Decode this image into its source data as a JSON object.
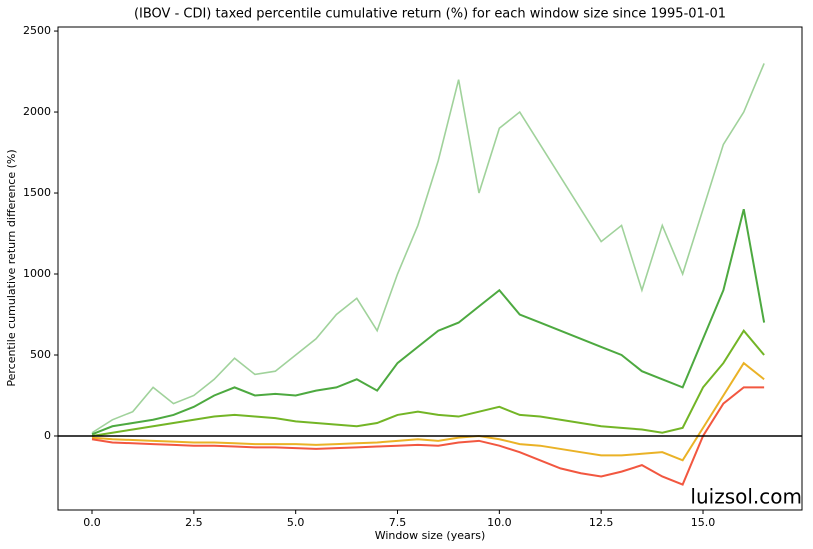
{
  "chart_data": {
    "type": "line",
    "title": "(IBOV - CDI) taxed percentile cumulative return (%) for each window size since 1995-01-01",
    "x_label": "Window size (years)",
    "y_label": "Percentile cumulative return difference (%)",
    "watermark": "luizsol.com",
    "x": [
      0,
      0.5,
      1,
      1.5,
      2,
      2.5,
      3,
      3.5,
      4,
      4.5,
      5,
      5.5,
      6,
      6.5,
      7,
      7.5,
      8,
      8.5,
      9,
      9.5,
      10,
      10.5,
      11,
      11.5,
      12,
      12.5,
      13,
      13.5,
      14,
      14.5,
      15,
      15.5,
      16,
      16.5
    ],
    "series": [
      {
        "color": "#8fca8a",
        "values": [
          20,
          100,
          150,
          300,
          200,
          250,
          350,
          480,
          380,
          400,
          500,
          600,
          750,
          850,
          650,
          1000,
          1300,
          1700,
          2200,
          1500,
          1900,
          2000,
          1800,
          1600,
          1400,
          1200,
          1300,
          900,
          1300,
          1000,
          1400,
          1800,
          2000,
          2300
        ]
      },
      {
        "color": "#2e9a1e",
        "values": [
          10,
          60,
          80,
          100,
          130,
          180,
          250,
          300,
          250,
          260,
          250,
          280,
          300,
          350,
          280,
          450,
          550,
          650,
          700,
          800,
          900,
          750,
          700,
          650,
          600,
          550,
          500,
          400,
          350,
          300,
          600,
          900,
          1400,
          700
        ]
      },
      {
        "color": "#5aa800",
        "values": [
          0,
          20,
          40,
          60,
          80,
          100,
          120,
          130,
          120,
          110,
          90,
          80,
          70,
          60,
          80,
          130,
          150,
          130,
          120,
          150,
          180,
          130,
          120,
          100,
          80,
          60,
          50,
          40,
          20,
          50,
          300,
          450,
          650,
          500
        ]
      },
      {
        "color": "#e6a400",
        "values": [
          -10,
          -20,
          -25,
          -30,
          -35,
          -40,
          -40,
          -45,
          -50,
          -50,
          -50,
          -55,
          -50,
          -45,
          -40,
          -30,
          -20,
          -30,
          -10,
          0,
          -20,
          -50,
          -60,
          -80,
          -100,
          -120,
          -120,
          -110,
          -100,
          -150,
          50,
          250,
          450,
          350
        ]
      },
      {
        "color": "#f03a1e",
        "values": [
          -20,
          -40,
          -45,
          -50,
          -55,
          -60,
          -60,
          -65,
          -70,
          -70,
          -75,
          -80,
          -75,
          -70,
          -65,
          -60,
          -55,
          -60,
          -40,
          -30,
          -60,
          -100,
          -150,
          -200,
          -230,
          -250,
          -220,
          -180,
          -250,
          -300,
          0,
          200,
          300,
          300
        ]
      }
    ],
    "reference_line": 0,
    "xlim": [
      -0.835,
      17.43
    ],
    "ylim": [
      -457,
      2525
    ],
    "xticks": [
      {
        "value": 0,
        "label": "0.0"
      },
      2.5,
      {
        "value": 5,
        "label": "5.0"
      },
      7.5,
      {
        "value": 10,
        "label": "10.0"
      },
      12.5,
      {
        "value": 15,
        "label": "15.0"
      }
    ],
    "yticks": [
      0,
      500,
      1000,
      1500,
      2000,
      2500
    ]
  }
}
